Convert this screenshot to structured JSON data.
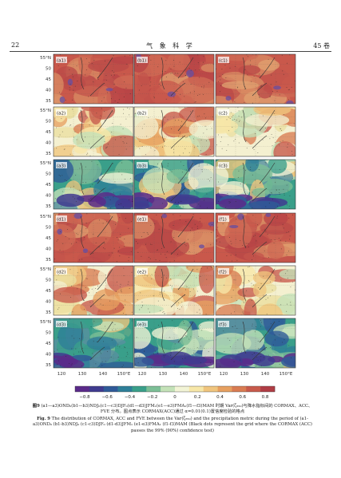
{
  "header": {
    "page_number": "22",
    "journal": "气 象 科 学",
    "volume": "45 卷"
  },
  "figure": {
    "panels": [
      [
        "(a1)",
        "(b1)",
        "(c1)"
      ],
      [
        "(a2)",
        "(b2)",
        "(c2)"
      ],
      [
        "(a3)",
        "(b3)",
        "(c3)"
      ],
      [
        "(d1)",
        "(e1)",
        "(f1)"
      ],
      [
        "(d2)",
        "(e2)",
        "(f2)"
      ],
      [
        "(d3)",
        "(e3)",
        "(f3)"
      ]
    ],
    "lat_labels": [
      "55°N",
      "50",
      "45",
      "40",
      "35"
    ],
    "lon_labels": [
      "120",
      "130",
      "140",
      "150°E"
    ],
    "colorbar": {
      "ticks": [
        "−0.8",
        "−0.6",
        "−0.4",
        "−0.2",
        "0",
        "0.2",
        "0.4",
        "0.6",
        "0.8"
      ],
      "colors": [
        "#5a2a8a",
        "#3f3b8f",
        "#2f5a98",
        "#2e7f98",
        "#3a9f8a",
        "#7cbf96",
        "#c4e2b8",
        "#f2f4d6",
        "#f7e7a8",
        "#f0c57e",
        "#e7a060",
        "#d97c52",
        "#c85a4b",
        "#b03d45"
      ]
    },
    "caption_cn": {
      "label": "图9",
      "text": "(a1—a3)OND₀(b1—b3)NDJ₀(c1—c3)DJF₀(d1—d3)JFM₁(e1—e3)FMA₁(f1—f3)MAM 时期 Var(ζ₈₅₀)与降水指标间的 CORMAX、ACC、FVE 分布。图点表示 CORMAX(ACC)通过 α=0.01(0.1)置信度检验的格点"
    },
    "caption_en": {
      "label": "Fig. 9",
      "text": "The distribution of CORMAX, ACC and FVE between the Var(ζ₈₅₀) and the precipitation metric during the period of (a1-a3)OND₀ (b1-b3)NDJ₀ (c1-c3)DJF₀ (d1-d3)JFM₁ (e1-e3)FMA₁ (f1-f3)MAM (Black dots represent the grid where the CORMAX (ACC) passes the 99% (90%) confidence test)"
    }
  }
}
